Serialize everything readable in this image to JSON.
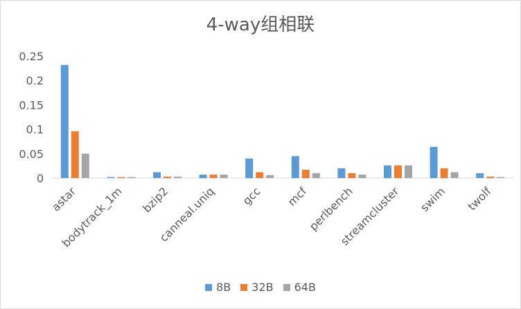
{
  "chart_data": {
    "type": "bar",
    "title": "4-way组相联",
    "categories": [
      "astar",
      "bodytrack_1m",
      "bzip2",
      "canneal.uniq",
      "gcc",
      "mcf",
      "perlbench",
      "streamcluster",
      "swim",
      "twolf"
    ],
    "series": [
      {
        "name": "8B",
        "color": "#5b9bd5",
        "values": [
          0.232,
          0.002,
          0.012,
          0.007,
          0.04,
          0.045,
          0.02,
          0.026,
          0.064,
          0.01
        ]
      },
      {
        "name": "32B",
        "color": "#ed7d31",
        "values": [
          0.096,
          0.002,
          0.003,
          0.007,
          0.012,
          0.017,
          0.01,
          0.026,
          0.02,
          0.003
        ]
      },
      {
        "name": "64B",
        "color": "#a5a5a5",
        "values": [
          0.05,
          0.002,
          0.003,
          0.007,
          0.006,
          0.01,
          0.007,
          0.026,
          0.012,
          0.002
        ]
      }
    ],
    "yticks": [
      "0",
      "0.05",
      "0.1",
      "0.15",
      "0.2",
      "0.25"
    ],
    "ylim": [
      0,
      0.25
    ],
    "xlabel": "",
    "ylabel": "",
    "grid": false,
    "legend_position": "bottom"
  }
}
